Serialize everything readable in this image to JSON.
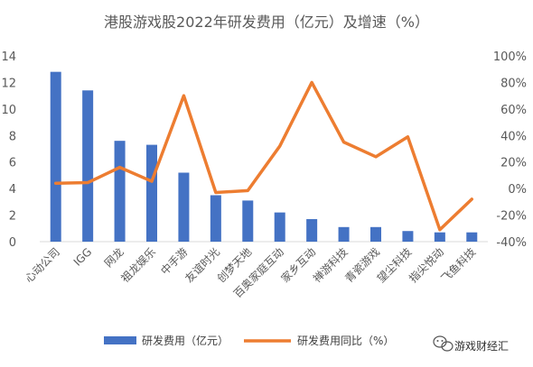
{
  "chart_data": {
    "type": "bar",
    "title": "港股游戏股2022年研发费用（亿元）及增速（%）",
    "categories": [
      "心动公司",
      "IGG",
      "网龙",
      "祖龙娱乐",
      "中手游",
      "友谊时光",
      "创梦天地",
      "百奥家庭互动",
      "家乡互动",
      "禅游科技",
      "青瓷游戏",
      "望尘科技",
      "指尖悦动",
      "飞鱼科技"
    ],
    "series": [
      {
        "name": "研发费用（亿元）",
        "type": "bar",
        "axis": "left",
        "color": "#4472C4",
        "values": [
          12.8,
          11.4,
          7.6,
          7.3,
          5.2,
          3.5,
          3.1,
          2.2,
          1.7,
          1.1,
          1.1,
          0.8,
          0.7,
          0.7
        ]
      },
      {
        "name": "研发费用同比（%）",
        "type": "line",
        "axis": "right",
        "color": "#ED7D31",
        "values": [
          4,
          4.5,
          16,
          5.5,
          70,
          -3,
          -1.5,
          32,
          80,
          35,
          24,
          39,
          -31,
          -8
        ]
      }
    ],
    "y_left": {
      "min": 0,
      "max": 14,
      "ticks": [
        0,
        2,
        4,
        6,
        8,
        10,
        12,
        14
      ]
    },
    "y_right": {
      "min": -40,
      "max": 100,
      "ticks": [
        "-40%",
        "-20%",
        "0%",
        "20%",
        "40%",
        "60%",
        "80%",
        "100%"
      ]
    },
    "y_right_values": [
      -40,
      -20,
      0,
      20,
      40,
      60,
      80,
      100
    ],
    "grid": false,
    "legend_position": "bottom"
  },
  "watermark": {
    "text": "游戏财经汇",
    "icon": "wechat-icon"
  }
}
